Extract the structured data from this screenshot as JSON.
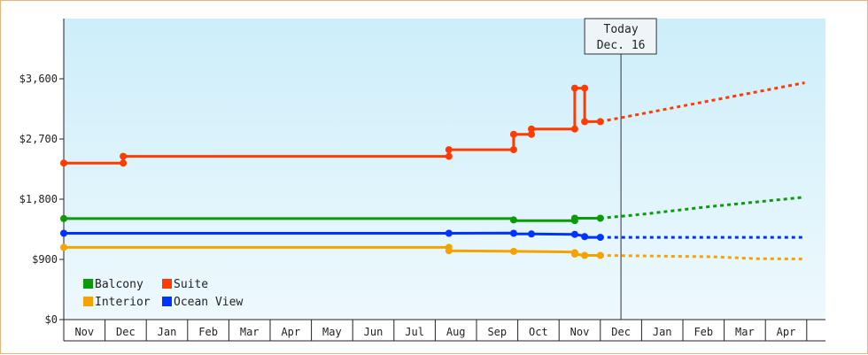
{
  "chart_data": {
    "type": "line",
    "ylim": [
      0,
      4500
    ],
    "y_ticks": [
      {
        "value": 0,
        "label": "$0"
      },
      {
        "value": 900,
        "label": "$900"
      },
      {
        "value": 1800,
        "label": "$1,800"
      },
      {
        "value": 2700,
        "label": "$2,700"
      },
      {
        "value": 3600,
        "label": "$3,600"
      }
    ],
    "months": [
      "Nov",
      "Dec",
      "Jan",
      "Feb",
      "Mar",
      "Apr",
      "May",
      "Jun",
      "Jul",
      "Aug",
      "Sep",
      "Oct",
      "Nov",
      "Dec",
      "Jan",
      "Feb",
      "Mar",
      "Apr"
    ],
    "grid": "none",
    "background": "gradient-light-blue",
    "today_marker": {
      "line1": "Today",
      "line2": "Dec. 16",
      "x": 13.5
    },
    "legend": {
      "placement": "bottom-left",
      "items": [
        {
          "label": "Balcony",
          "color": "#0a9a0a"
        },
        {
          "label": "Suite",
          "color": "#ff3b00"
        },
        {
          "label": "Interior",
          "color": "#f5a300"
        },
        {
          "label": "Ocean View",
          "color": "#0033ff"
        }
      ]
    },
    "series": [
      {
        "name": "Suite",
        "color": "#ff3b00",
        "points": [
          [
            0,
            2340
          ],
          [
            1.44,
            2340
          ],
          [
            1.44,
            2440
          ],
          [
            9.33,
            2440
          ],
          [
            9.33,
            2540
          ],
          [
            10.9,
            2540
          ],
          [
            10.9,
            2770
          ],
          [
            11.33,
            2770
          ],
          [
            11.33,
            2850
          ],
          [
            12.38,
            2850
          ],
          [
            12.38,
            3460
          ],
          [
            12.62,
            3460
          ],
          [
            12.62,
            2960
          ],
          [
            13.0,
            2960
          ]
        ],
        "projection": [
          [
            13.0,
            2960
          ],
          [
            17.95,
            3540
          ]
        ]
      },
      {
        "name": "Balcony",
        "color": "#0a9a0a",
        "points": [
          [
            0,
            1510
          ],
          [
            10.9,
            1510
          ],
          [
            10.9,
            1480
          ],
          [
            12.38,
            1480
          ],
          [
            12.38,
            1515
          ],
          [
            13.0,
            1515
          ]
        ],
        "projection": [
          [
            13.0,
            1515
          ],
          [
            14.1,
            1580
          ],
          [
            15.5,
            1680
          ],
          [
            17.95,
            1830
          ]
        ]
      },
      {
        "name": "Ocean View",
        "color": "#0033ff",
        "points": [
          [
            0,
            1290
          ],
          [
            9.33,
            1290
          ],
          [
            10.9,
            1295
          ],
          [
            10.9,
            1280
          ],
          [
            11.33,
            1280
          ],
          [
            12.38,
            1275
          ],
          [
            12.62,
            1250
          ],
          [
            12.62,
            1230
          ],
          [
            13.0,
            1230
          ]
        ],
        "projection": [
          [
            13.0,
            1230
          ],
          [
            17.95,
            1230
          ]
        ]
      },
      {
        "name": "Interior",
        "color": "#f5a300",
        "points": [
          [
            0,
            1080
          ],
          [
            9.33,
            1080
          ],
          [
            9.33,
            1030
          ],
          [
            10.9,
            1020
          ],
          [
            12.38,
            1010
          ],
          [
            12.38,
            980
          ],
          [
            12.62,
            960
          ],
          [
            13.0,
            960
          ]
        ],
        "projection": [
          [
            13.0,
            960
          ],
          [
            14.3,
            950
          ],
          [
            15.7,
            940
          ],
          [
            16.8,
            910
          ],
          [
            17.95,
            905
          ]
        ]
      }
    ],
    "markers": {
      "Suite": [
        [
          0,
          2340
        ],
        [
          1.44,
          2340
        ],
        [
          1.44,
          2440
        ],
        [
          9.33,
          2440
        ],
        [
          9.33,
          2540
        ],
        [
          10.9,
          2540
        ],
        [
          10.9,
          2770
        ],
        [
          11.33,
          2770
        ],
        [
          11.33,
          2850
        ],
        [
          12.38,
          2850
        ],
        [
          12.38,
          3460
        ],
        [
          12.62,
          3460
        ],
        [
          12.62,
          2960
        ],
        [
          13.0,
          2960
        ]
      ],
      "Balcony": [
        [
          0,
          1510
        ],
        [
          10.9,
          1490
        ],
        [
          12.38,
          1480
        ],
        [
          12.38,
          1515
        ],
        [
          13.0,
          1515
        ]
      ],
      "Ocean View": [
        [
          0,
          1290
        ],
        [
          9.33,
          1290
        ],
        [
          10.9,
          1290
        ],
        [
          11.33,
          1280
        ],
        [
          12.38,
          1275
        ],
        [
          12.62,
          1240
        ],
        [
          13.0,
          1230
        ]
      ],
      "Interior": [
        [
          0,
          1080
        ],
        [
          9.33,
          1080
        ],
        [
          9.33,
          1030
        ],
        [
          10.9,
          1020
        ],
        [
          12.38,
          1000
        ],
        [
          12.38,
          980
        ],
        [
          12.62,
          960
        ],
        [
          13.0,
          960
        ]
      ]
    }
  }
}
